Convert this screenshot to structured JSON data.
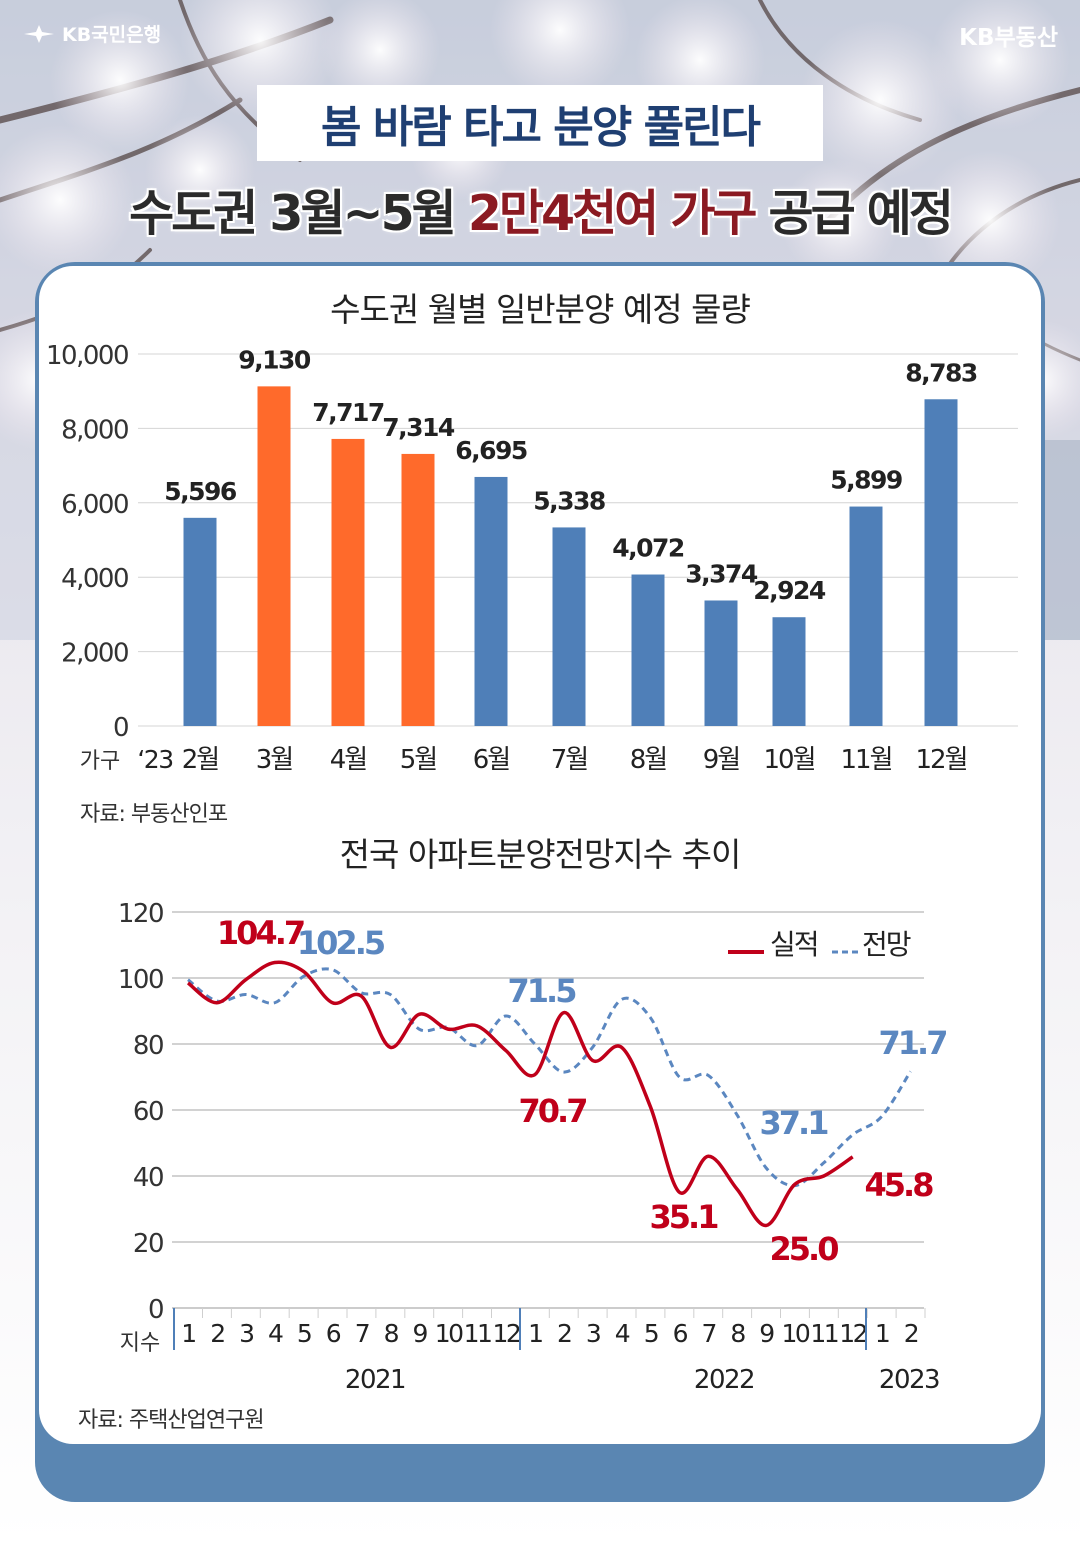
{
  "header": {
    "brand_left": "KB국민은행",
    "brand_right": "KB부동산",
    "subtitle": "봄 바람 타고 분양 풀린다",
    "headline_part1": "수도권 3월~5월 ",
    "headline_highlight": "2만4천여 가구",
    "headline_part2": " 공급 예정"
  },
  "colors": {
    "bar_blue": "#4f7fb8",
    "bar_orange": "#ff6a2b",
    "actual_red": "#c0001a",
    "forecast_blue": "#5b87c0",
    "card_frame": "#5a86b2",
    "subtitle_navy": "#1f3f72",
    "headline_red": "#8b1a22"
  },
  "chart_data": [
    {
      "type": "bar",
      "title": "수도권 월별 일반분양 예정 물량",
      "ylabel": "가구",
      "year_label": "‘23",
      "categories": [
        "2월",
        "3월",
        "4월",
        "5월",
        "6월",
        "7월",
        "8월",
        "9월",
        "10월",
        "11월",
        "12월"
      ],
      "values": [
        5596,
        9130,
        7717,
        7314,
        6695,
        5338,
        4072,
        3374,
        2924,
        5899,
        8783
      ],
      "value_labels": [
        "5,596",
        "9,130",
        "7,717",
        "7,314",
        "6,695",
        "5,338",
        "4,072",
        "3,374",
        "2,924",
        "5,899",
        "8,783"
      ],
      "highlight": [
        false,
        true,
        true,
        true,
        false,
        false,
        false,
        false,
        false,
        false,
        false
      ],
      "yticks": [
        "0",
        "2,000",
        "4,000",
        "6,000",
        "8,000",
        "10,000"
      ],
      "ylim": [
        0,
        10000
      ],
      "grid": true,
      "source": "자료: 부동산인포"
    },
    {
      "type": "line",
      "title": "전국 아파트분양전망지수 추이",
      "ylabel": "지수",
      "x_ticks": [
        "1",
        "2",
        "3",
        "4",
        "5",
        "6",
        "7",
        "8",
        "9",
        "10",
        "11",
        "12",
        "1",
        "2",
        "3",
        "4",
        "5",
        "6",
        "7",
        "8",
        "9",
        "10",
        "11",
        "12",
        "1",
        "2"
      ],
      "year_labels": [
        "2021",
        "2022",
        "2023"
      ],
      "ylim": [
        0,
        120
      ],
      "yticks": [
        "0",
        "20",
        "40",
        "60",
        "80",
        "100",
        "120"
      ],
      "grid": true,
      "legend": {
        "position": "top-right",
        "actual": "실적",
        "forecast": "전망"
      },
      "series": [
        {
          "name": "실적",
          "style": "solid",
          "values": [
            98.5,
            92.5,
            99.5,
            104.7,
            102.0,
            92.5,
            94.5,
            79.0,
            89.0,
            84.5,
            85.5,
            78.0,
            70.7,
            89.5,
            75.0,
            79.0,
            61.0,
            35.1,
            46.0,
            36.0,
            25.0,
            37.5,
            40.0,
            45.8
          ]
        },
        {
          "name": "전망",
          "style": "dashed",
          "values": [
            99.5,
            93.0,
            95.0,
            92.5,
            100.5,
            102.5,
            95.5,
            95.0,
            84.5,
            85.0,
            79.5,
            88.5,
            80.0,
            71.5,
            79.0,
            93.5,
            88.0,
            70.0,
            70.5,
            58.5,
            42.5,
            37.1,
            44.0,
            52.5,
            58.0,
            71.7
          ]
        }
      ],
      "annotations": [
        {
          "text": "104.7",
          "series": "실적"
        },
        {
          "text": "102.5",
          "series": "전망"
        },
        {
          "text": "71.5",
          "series": "전망"
        },
        {
          "text": "70.7",
          "series": "실적"
        },
        {
          "text": "35.1",
          "series": "실적"
        },
        {
          "text": "37.1",
          "series": "전망"
        },
        {
          "text": "25.0",
          "series": "실적"
        },
        {
          "text": "45.8",
          "series": "실적"
        },
        {
          "text": "71.7",
          "series": "전망"
        }
      ],
      "source": "자료: 주택산업연구원"
    }
  ]
}
